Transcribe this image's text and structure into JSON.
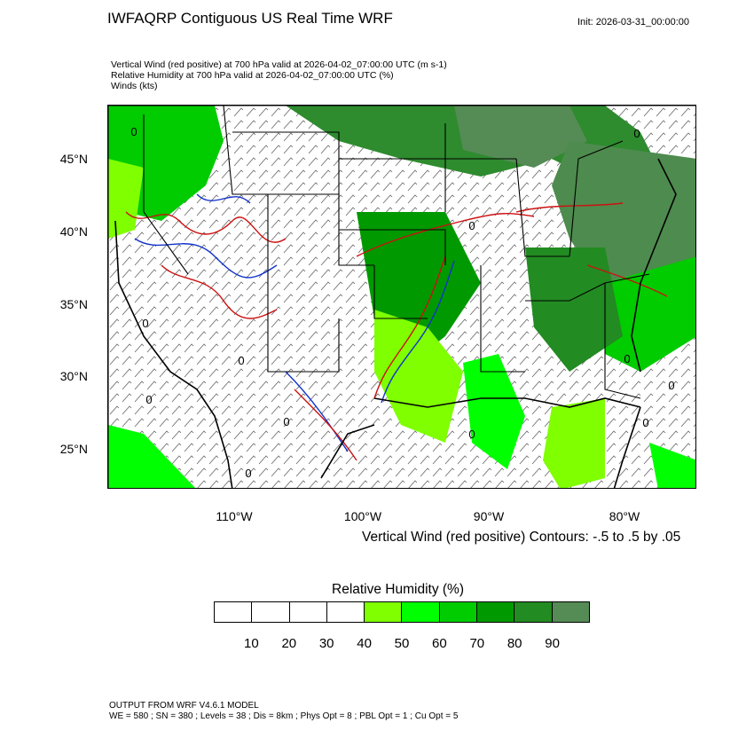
{
  "header": {
    "title": "IWFAQRP Contiguous US Real Time WRF",
    "init": "Init: 2026-03-31_00:00:00"
  },
  "subtitles": {
    "line1": "Vertical Wind (red positive) at 700 hPa valid at 2026-04-02_07:00:00 UTC   (m s-1)",
    "line2": "Relative Humidity at 700 hPa valid at 2026-04-02_07:00:00 UTC   (%)",
    "line3": "Winds   (kts)"
  },
  "map": {
    "lat_labels": [
      "45°N",
      "40°N",
      "35°N",
      "30°N",
      "25°N"
    ],
    "lon_labels": [
      "110°W",
      "100°W",
      "90°W",
      "80°W"
    ],
    "contour_zero_label": "0",
    "contour_note": "Vertical Wind (red positive) Contours: -.5 to .5 by .05",
    "colors": {
      "land_outline": "#000000",
      "updraft": "#cc1111",
      "downdraft": "#1133cc"
    }
  },
  "legend": {
    "title": "Relative Humidity  (%)",
    "labels": [
      "10",
      "20",
      "30",
      "40",
      "50",
      "60",
      "70",
      "80",
      "90"
    ],
    "colors": [
      "#ffffff",
      "#ffffff",
      "#ffffff",
      "#ffffff",
      "#7fff00",
      "#00ff00",
      "#00cc00",
      "#009900",
      "#228b22",
      "#558b55"
    ]
  },
  "footer": {
    "line1": "OUTPUT FROM WRF V4.6.1 MODEL",
    "line2": "WE = 580 ; SN = 380 ; Levels = 38 ; Dis = 8km ; Phys Opt = 8 ; PBL Opt = 1 ; Cu Opt = 5"
  }
}
